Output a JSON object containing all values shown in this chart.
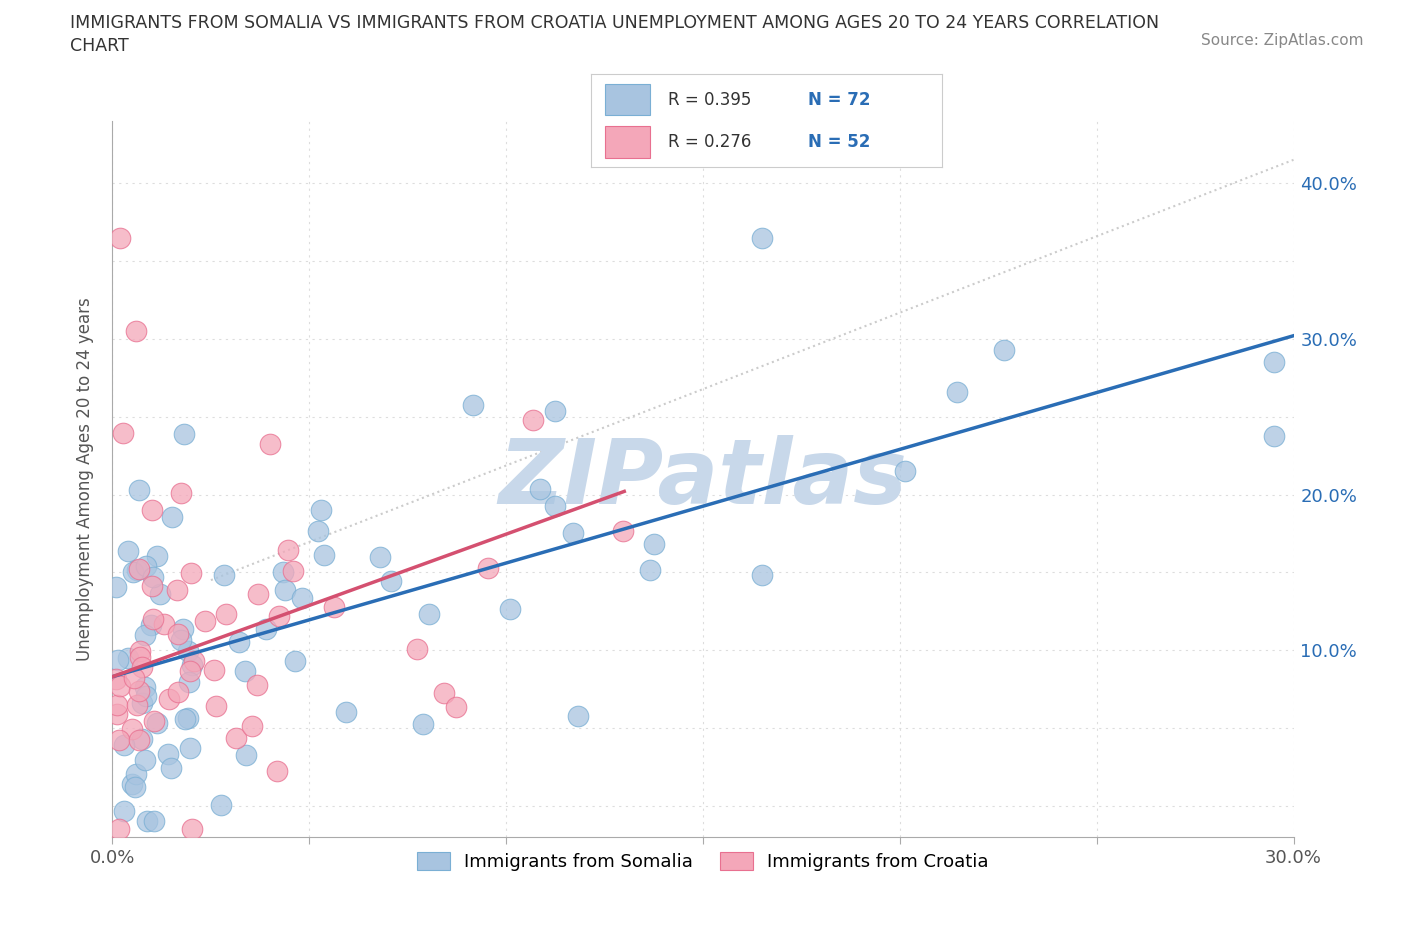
{
  "title_line1": "IMMIGRANTS FROM SOMALIA VS IMMIGRANTS FROM CROATIA UNEMPLOYMENT AMONG AGES 20 TO 24 YEARS CORRELATION",
  "title_line2": "CHART",
  "source": "Source: ZipAtlas.com",
  "ylabel": "Unemployment Among Ages 20 to 24 years",
  "xlim": [
    0.0,
    0.3
  ],
  "ylim": [
    -0.02,
    0.44
  ],
  "ylim_display": [
    0.0,
    0.42
  ],
  "xticks": [
    0.0,
    0.05,
    0.1,
    0.15,
    0.2,
    0.25,
    0.3
  ],
  "yticks": [
    0.0,
    0.05,
    0.1,
    0.15,
    0.2,
    0.25,
    0.3,
    0.35,
    0.4
  ],
  "xtick_labels": [
    "0.0%",
    "",
    "",
    "",
    "",
    "",
    "30.0%"
  ],
  "ytick_labels_right": [
    "",
    "",
    "10.0%",
    "",
    "20.0%",
    "",
    "30.0%",
    "",
    "40.0%"
  ],
  "somalia_color": "#a8c4e0",
  "somalia_edge_color": "#7aafd4",
  "croatia_color": "#f4a7b9",
  "croatia_edge_color": "#e87090",
  "somalia_trend_color": "#2a6db5",
  "croatia_trend_color": "#d45070",
  "diag_line_color": "#cccccc",
  "watermark": "ZIPatlas",
  "watermark_color": "#c8d8ea",
  "legend_R_somalia": "R = 0.395",
  "legend_N_somalia": "N = 72",
  "legend_R_croatia": "R = 0.276",
  "legend_N_croatia": "N = 52",
  "legend_label_somalia": "Immigrants from Somalia",
  "legend_label_croatia": "Immigrants from Croatia",
  "somalia_trend_x": [
    0.0,
    0.3
  ],
  "somalia_trend_y": [
    0.083,
    0.302
  ],
  "croatia_trend_x": [
    0.0,
    0.13
  ],
  "croatia_trend_y": [
    0.083,
    0.202
  ],
  "diag_line_x": [
    0.025,
    0.3
  ],
  "diag_line_y": [
    0.145,
    0.415
  ],
  "background_color": "#ffffff",
  "grid_color": "#dddddd"
}
